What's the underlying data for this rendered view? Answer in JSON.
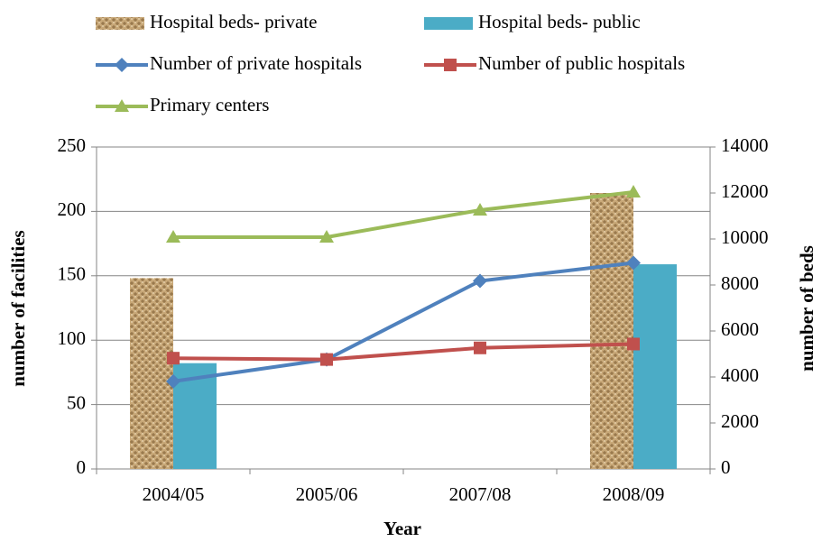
{
  "chart_data": {
    "type": "combo",
    "x_label": "Year",
    "y_label": "number of facilities",
    "y2_label": "number of beds",
    "categories": [
      "2004/05",
      "2005/06",
      "2007/08",
      "2008/09"
    ],
    "ylim": [
      0,
      250
    ],
    "yticks": [
      0,
      50,
      100,
      150,
      200,
      250
    ],
    "y2lim": [
      0,
      14000
    ],
    "y2ticks": [
      0,
      2000,
      4000,
      6000,
      8000,
      10000,
      12000,
      14000
    ],
    "grid": true,
    "legend": "top",
    "series": [
      {
        "name": "Hospital beds- private",
        "type": "bar",
        "axis": "y2",
        "color": "#c8a878",
        "values": [
          8300,
          null,
          null,
          12000
        ]
      },
      {
        "name": "Hospital beds- public",
        "type": "bar",
        "axis": "y2",
        "color": "#4bacc6",
        "values": [
          4600,
          null,
          null,
          8900
        ]
      },
      {
        "name": "Number of private hospitals",
        "type": "line",
        "marker": "diamond",
        "color": "#4f81bd",
        "values": [
          68,
          85,
          146,
          160
        ]
      },
      {
        "name": "Number of public hospitals",
        "type": "line",
        "marker": "square",
        "color": "#c0504d",
        "values": [
          86,
          85,
          94,
          97
        ]
      },
      {
        "name": "Primary centers",
        "type": "line",
        "marker": "triangle",
        "color": "#9bbb59",
        "values": [
          180,
          180,
          201,
          215
        ]
      }
    ]
  }
}
